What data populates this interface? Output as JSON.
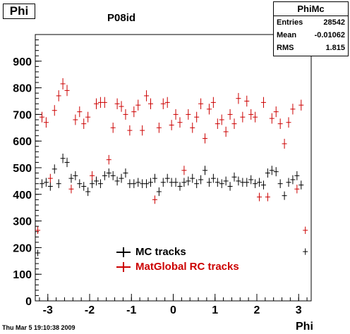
{
  "canvas_title": "Phi",
  "plot_title": "P08id",
  "stats": {
    "name": "PhiMc",
    "rows": [
      {
        "label": "Entries",
        "value": "28542"
      },
      {
        "label": "Mean",
        "value": "-0.01062"
      },
      {
        "label": "RMS",
        "value": "1.815"
      }
    ]
  },
  "footer": "Thu Mar  5 19:10:38 2009",
  "colors": {
    "mc": "#000000",
    "rc": "#cc0000"
  },
  "chart_data": {
    "type": "scatter",
    "title": "P08id",
    "xlabel": "Phi",
    "ylabel": "",
    "xlim": [
      -3.3,
      3.3
    ],
    "ylim": [
      0,
      1000
    ],
    "xticks": [
      "-3",
      "-2",
      "-1",
      "0",
      "1",
      "2",
      "3"
    ],
    "yticks": [
      "0",
      "100",
      "200",
      "300",
      "400",
      "500",
      "600",
      "700",
      "800",
      "900"
    ],
    "grid": false,
    "legend_position": "bottom-center",
    "series": [
      {
        "name": "MC tracks",
        "color": "#000000",
        "x": [
          -3.24,
          -3.14,
          -3.04,
          -2.94,
          -2.84,
          -2.74,
          -2.64,
          -2.54,
          -2.44,
          -2.34,
          -2.24,
          -2.14,
          -2.04,
          -1.94,
          -1.84,
          -1.74,
          -1.64,
          -1.54,
          -1.44,
          -1.34,
          -1.24,
          -1.14,
          -1.04,
          -0.94,
          -0.84,
          -0.74,
          -0.64,
          -0.54,
          -0.44,
          -0.34,
          -0.24,
          -0.14,
          -0.04,
          0.06,
          0.16,
          0.26,
          0.36,
          0.46,
          0.56,
          0.66,
          0.76,
          0.86,
          0.96,
          1.06,
          1.16,
          1.26,
          1.36,
          1.46,
          1.56,
          1.66,
          1.76,
          1.86,
          1.96,
          2.06,
          2.16,
          2.26,
          2.36,
          2.46,
          2.56,
          2.66,
          2.76,
          2.86,
          2.96,
          3.06,
          3.16
        ],
        "values": [
          180,
          440,
          445,
          430,
          495,
          440,
          535,
          520,
          460,
          470,
          440,
          430,
          410,
          440,
          450,
          440,
          470,
          480,
          470,
          450,
          460,
          480,
          440,
          440,
          445,
          440,
          440,
          445,
          460,
          410,
          445,
          460,
          445,
          445,
          430,
          445,
          450,
          460,
          440,
          455,
          490,
          445,
          460,
          445,
          440,
          450,
          430,
          465,
          450,
          445,
          445,
          455,
          440,
          445,
          435,
          480,
          490,
          485,
          440,
          395,
          445,
          455,
          470,
          435,
          185
        ]
      },
      {
        "name": "MatGlobal RC tracks",
        "color": "#cc0000",
        "x": [
          -3.24,
          -3.14,
          -3.04,
          -2.94,
          -2.84,
          -2.74,
          -2.64,
          -2.54,
          -2.44,
          -2.34,
          -2.24,
          -2.14,
          -2.04,
          -1.94,
          -1.84,
          -1.74,
          -1.64,
          -1.54,
          -1.44,
          -1.34,
          -1.24,
          -1.14,
          -1.04,
          -0.94,
          -0.84,
          -0.74,
          -0.64,
          -0.54,
          -0.44,
          -0.34,
          -0.24,
          -0.14,
          -0.04,
          0.06,
          0.16,
          0.26,
          0.36,
          0.46,
          0.56,
          0.66,
          0.76,
          0.86,
          0.96,
          1.06,
          1.16,
          1.26,
          1.36,
          1.46,
          1.56,
          1.66,
          1.76,
          1.86,
          1.96,
          2.06,
          2.16,
          2.26,
          2.36,
          2.46,
          2.56,
          2.66,
          2.76,
          2.86,
          2.96,
          3.06,
          3.16
        ],
        "values": [
          265,
          690,
          670,
          460,
          715,
          770,
          815,
          790,
          420,
          680,
          710,
          665,
          690,
          470,
          740,
          745,
          745,
          530,
          650,
          740,
          730,
          700,
          640,
          710,
          735,
          640,
          770,
          740,
          380,
          650,
          740,
          745,
          660,
          700,
          670,
          490,
          700,
          650,
          690,
          740,
          610,
          720,
          745,
          665,
          680,
          635,
          700,
          665,
          760,
          690,
          750,
          700,
          690,
          390,
          745,
          390,
          685,
          710,
          665,
          590,
          670,
          720,
          420,
          735,
          265
        ]
      }
    ]
  }
}
